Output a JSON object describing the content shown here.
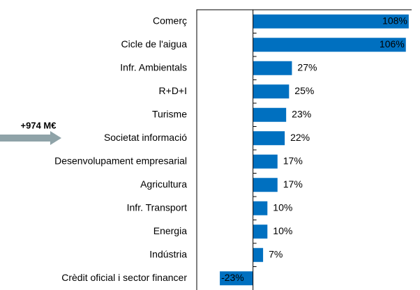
{
  "chart_data": {
    "type": "barh",
    "categories": [
      "Comerç",
      "Cicle de l'aigua",
      "Infr. Ambientals",
      "R+D+I",
      "Turisme",
      "Societat informació",
      "Desenvolupament empresarial",
      "Agricultura",
      "Infr. Transport",
      "Energia",
      "Indústria",
      "Crèdit oficial i sector financer"
    ],
    "values": [
      108,
      106,
      27,
      25,
      23,
      22,
      17,
      17,
      10,
      10,
      7,
      -23
    ],
    "value_labels": [
      "108%",
      "106%",
      "27%",
      "25%",
      "23%",
      "22%",
      "17%",
      "17%",
      "10%",
      "10%",
      "7%",
      "-23%"
    ],
    "color": "#0070c0",
    "xlim": [
      -39,
      110
    ],
    "annotation": "+974 M€",
    "annotation_color": "#e46c0a"
  }
}
